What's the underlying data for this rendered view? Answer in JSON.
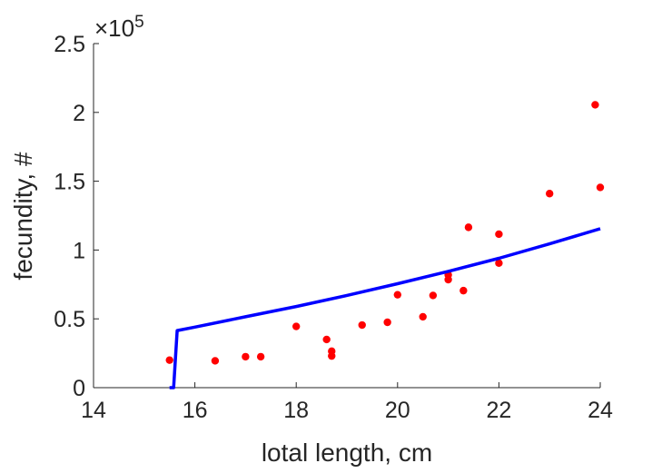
{
  "chart_data": {
    "type": "scatter",
    "xlabel": "lotal length, cm",
    "ylabel": "fecundity, #",
    "y_exponent_label": "×10",
    "y_exponent_power": "5",
    "xlim": [
      14,
      24
    ],
    "ylim": [
      0,
      250000
    ],
    "x_ticks": [
      14,
      16,
      18,
      20,
      22,
      24
    ],
    "x_tick_labels": [
      "14",
      "16",
      "18",
      "20",
      "22",
      "24"
    ],
    "y_ticks": [
      0,
      50000,
      100000,
      150000,
      200000,
      250000
    ],
    "y_tick_labels": [
      "0",
      "0.5",
      "1",
      "1.5",
      "2",
      "2.5"
    ],
    "grid": false,
    "series": [
      {
        "kind": "points",
        "color": "#ff0000",
        "points": [
          {
            "x": 15.5,
            "y": 20000
          },
          {
            "x": 16.4,
            "y": 19500
          },
          {
            "x": 17.0,
            "y": 22500
          },
          {
            "x": 17.3,
            "y": 22500
          },
          {
            "x": 18.0,
            "y": 44500
          },
          {
            "x": 18.6,
            "y": 35000
          },
          {
            "x": 18.7,
            "y": 26500
          },
          {
            "x": 18.7,
            "y": 23000
          },
          {
            "x": 19.3,
            "y": 45500
          },
          {
            "x": 19.8,
            "y": 47500
          },
          {
            "x": 20.0,
            "y": 67500
          },
          {
            "x": 20.5,
            "y": 51500
          },
          {
            "x": 20.7,
            "y": 67000
          },
          {
            "x": 21.0,
            "y": 82000
          },
          {
            "x": 21.0,
            "y": 78500
          },
          {
            "x": 21.3,
            "y": 70500
          },
          {
            "x": 21.4,
            "y": 116500
          },
          {
            "x": 22.0,
            "y": 111500
          },
          {
            "x": 22.0,
            "y": 90500
          },
          {
            "x": 23.0,
            "y": 141000
          },
          {
            "x": 23.9,
            "y": 205500
          },
          {
            "x": 24.0,
            "y": 145500
          }
        ]
      },
      {
        "kind": "line",
        "color": "#0000ff",
        "points": [
          {
            "x": 15.5,
            "y": 0
          },
          {
            "x": 15.58,
            "y": 0
          },
          {
            "x": 15.65,
            "y": 41500
          },
          {
            "x": 16.0,
            "y": 44000
          },
          {
            "x": 17.0,
            "y": 51500
          },
          {
            "x": 18.0,
            "y": 59000
          },
          {
            "x": 19.0,
            "y": 67000
          },
          {
            "x": 20.0,
            "y": 75500
          },
          {
            "x": 21.0,
            "y": 84500
          },
          {
            "x": 22.0,
            "y": 94000
          },
          {
            "x": 23.0,
            "y": 104500
          },
          {
            "x": 24.0,
            "y": 115500
          }
        ]
      }
    ]
  }
}
